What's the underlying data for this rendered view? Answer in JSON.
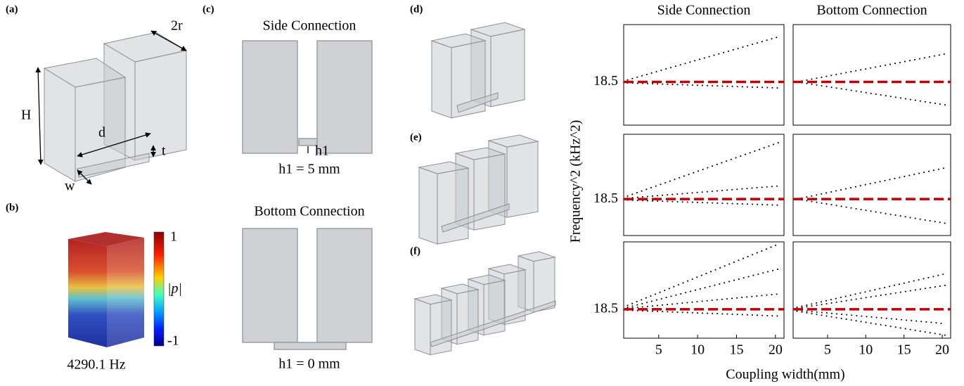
{
  "panels": {
    "a": "(a)",
    "b": "(b)",
    "c": "(c)",
    "d": "(d)",
    "e": "(e)",
    "f": "(f)"
  },
  "annotations_a": {
    "r": "2r",
    "H": "H",
    "d": "d",
    "t": "t",
    "w": "w"
  },
  "annotations_b": {
    "freq": "4290.1 Hz",
    "cmax": "1",
    "cmin": "-1",
    "clabel": "|p|"
  },
  "annotations_c": {
    "side": "Side Connection",
    "h1": "h1",
    "side_h": "h1 = 5 mm",
    "bottom": "Bottom Connection",
    "bottom_h": "h1 = 0 mm"
  },
  "plots": {
    "columns": [
      "Side Connection",
      "Bottom Connection"
    ],
    "ylabel": "Frequency^2 (kHz^2)",
    "xlabel": "Coupling width(mm)"
  },
  "chart_data": [
    {
      "type": "line",
      "x": [
        1,
        20.5
      ],
      "xlim": [
        0.5,
        21.1
      ],
      "ylim": [
        18.07,
        19.07
      ],
      "yticks": [
        18.5
      ],
      "series": [
        {
          "color": "#000000",
          "values": [
            18.52,
            18.95
          ]
        },
        {
          "color": "#000000",
          "values": [
            18.49,
            18.44
          ]
        },
        {
          "color": "#c00000",
          "x": [
            0.5,
            21.1
          ],
          "values": [
            18.5,
            18.5
          ]
        }
      ]
    },
    {
      "type": "line",
      "x": [
        1,
        20.5
      ],
      "xlim": [
        0.5,
        21.1
      ],
      "ylim": [
        18.07,
        19.07
      ],
      "series": [
        {
          "color": "#000000",
          "values": [
            18.5,
            18.78
          ]
        },
        {
          "color": "#000000",
          "values": [
            18.5,
            18.27
          ]
        },
        {
          "color": "#c00000",
          "x": [
            0.5,
            21.1
          ],
          "values": [
            18.5,
            18.5
          ]
        }
      ]
    },
    {
      "type": "line",
      "x": [
        1,
        20.5
      ],
      "xlim": [
        0.5,
        21.1
      ],
      "ylim": [
        18.14,
        19.14
      ],
      "yticks": [
        18.5
      ],
      "series": [
        {
          "color": "#000000",
          "values": [
            18.53,
            19.06
          ]
        },
        {
          "color": "#000000",
          "values": [
            18.51,
            18.63
          ]
        },
        {
          "color": "#000000",
          "values": [
            18.49,
            18.44
          ]
        },
        {
          "color": "#c00000",
          "x": [
            0.5,
            21.1
          ],
          "values": [
            18.5,
            18.5
          ]
        }
      ]
    },
    {
      "type": "line",
      "x": [
        1,
        20.5
      ],
      "xlim": [
        0.5,
        21.1
      ],
      "ylim": [
        18.14,
        19.14
      ],
      "series": [
        {
          "color": "#000000",
          "values": [
            18.5,
            18.81
          ]
        },
        {
          "color": "#000000",
          "values": [
            18.5,
            18.26
          ]
        },
        {
          "color": "#c00000",
          "x": [
            0.5,
            21.1
          ],
          "values": [
            18.5,
            18.5
          ]
        }
      ]
    },
    {
      "type": "line",
      "x": [
        1,
        20.5
      ],
      "xlim": [
        0.5,
        21.1
      ],
      "ylim": [
        18.2,
        19.2
      ],
      "yticks": [
        18.5
      ],
      "xticks": [
        5,
        10,
        15,
        20
      ],
      "series": [
        {
          "color": "#000000",
          "values": [
            18.54,
            19.18
          ]
        },
        {
          "color": "#000000",
          "values": [
            18.52,
            18.92
          ]
        },
        {
          "color": "#000000",
          "values": [
            18.51,
            18.66
          ]
        },
        {
          "color": "#000000",
          "values": [
            18.49,
            18.43
          ]
        },
        {
          "color": "#c00000",
          "x": [
            0.5,
            21.1
          ],
          "values": [
            18.5,
            18.5
          ]
        }
      ]
    },
    {
      "type": "line",
      "x": [
        1,
        20.5
      ],
      "xlim": [
        0.5,
        21.1
      ],
      "ylim": [
        18.2,
        19.2
      ],
      "xticks": [
        5,
        10,
        15,
        20
      ],
      "series": [
        {
          "color": "#000000",
          "values": [
            18.52,
            18.87
          ]
        },
        {
          "color": "#000000",
          "values": [
            18.51,
            18.75
          ]
        },
        {
          "color": "#000000",
          "values": [
            18.49,
            18.35
          ]
        },
        {
          "color": "#000000",
          "values": [
            18.48,
            18.23
          ]
        },
        {
          "color": "#c00000",
          "x": [
            0.5,
            21.1
          ],
          "values": [
            18.5,
            18.5
          ]
        }
      ]
    }
  ]
}
